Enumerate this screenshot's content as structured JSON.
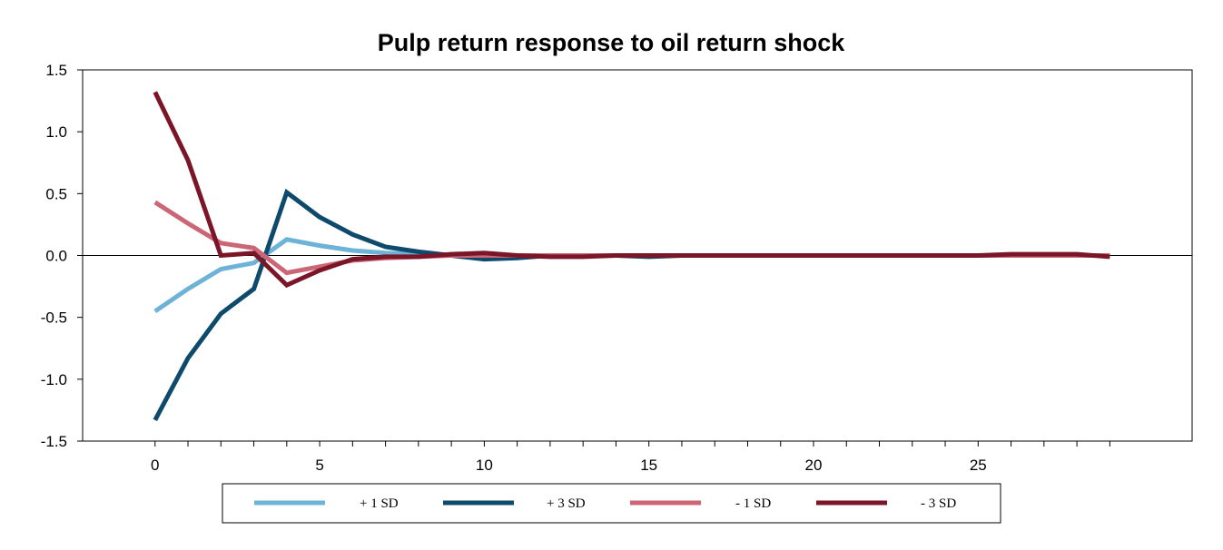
{
  "chart_data": {
    "type": "line",
    "title": "Pulp return response to oil return shock",
    "xlabel": "",
    "ylabel": "",
    "xlim": [
      -2.2,
      31.5
    ],
    "ylim": [
      -1.5,
      1.5
    ],
    "x_ticks": [
      0,
      5,
      10,
      15,
      20,
      25
    ],
    "y_ticks": [
      1.5,
      1.0,
      0.5,
      0.0,
      -0.5,
      -1.0,
      -1.5
    ],
    "y_tick_labels": [
      "1.5",
      "1.0",
      "0.5",
      "0.0",
      "-0.5",
      "-1.0",
      "-1.5"
    ],
    "grid": false,
    "legend_position": "bottom",
    "x": [
      0,
      1,
      2,
      3,
      4,
      5,
      6,
      7,
      8,
      9,
      10,
      11,
      12,
      13,
      14,
      15,
      16,
      17,
      18,
      19,
      20,
      21,
      22,
      23,
      24,
      25,
      26,
      27,
      28,
      29
    ],
    "series": [
      {
        "name": "+ 1 SD",
        "color": "#6db3d8",
        "values": [
          -0.45,
          -0.27,
          -0.11,
          -0.06,
          0.13,
          0.08,
          0.04,
          0.02,
          0.01,
          0.0,
          0.0,
          0.0,
          0.0,
          0.0,
          0.0,
          0.0,
          0.0,
          0.0,
          0.0,
          0.0,
          0.0,
          0.0,
          0.0,
          0.0,
          0.0,
          0.0,
          0.0,
          0.0,
          0.0,
          0.0
        ]
      },
      {
        "name": "+ 3 SD",
        "color": "#0d4a6b",
        "values": [
          -1.33,
          -0.83,
          -0.47,
          -0.27,
          0.51,
          0.31,
          0.17,
          0.07,
          0.03,
          0.0,
          -0.03,
          -0.02,
          0.0,
          0.0,
          0.0,
          -0.01,
          0.0,
          0.0,
          0.0,
          0.0,
          0.0,
          0.0,
          0.0,
          0.0,
          0.0,
          0.0,
          0.0,
          0.0,
          0.0,
          0.0
        ]
      },
      {
        "name": "- 1 SD",
        "color": "#cc6677",
        "values": [
          0.43,
          0.26,
          0.1,
          0.06,
          -0.14,
          -0.09,
          -0.04,
          -0.02,
          -0.01,
          0.0,
          0.0,
          0.0,
          0.0,
          0.0,
          0.0,
          0.0,
          0.0,
          0.0,
          0.0,
          0.0,
          0.0,
          0.0,
          0.0,
          0.0,
          0.0,
          0.0,
          0.0,
          0.0,
          0.0,
          0.0
        ]
      },
      {
        "name": "- 3 SD",
        "color": "#7a1628",
        "values": [
          1.32,
          0.77,
          0.0,
          0.02,
          -0.24,
          -0.12,
          -0.03,
          -0.01,
          -0.01,
          0.01,
          0.02,
          0.0,
          -0.01,
          -0.01,
          0.0,
          0.0,
          0.0,
          0.0,
          0.0,
          0.0,
          0.0,
          0.0,
          0.0,
          0.0,
          0.0,
          0.0,
          0.01,
          0.01,
          0.01,
          -0.01
        ]
      }
    ]
  }
}
